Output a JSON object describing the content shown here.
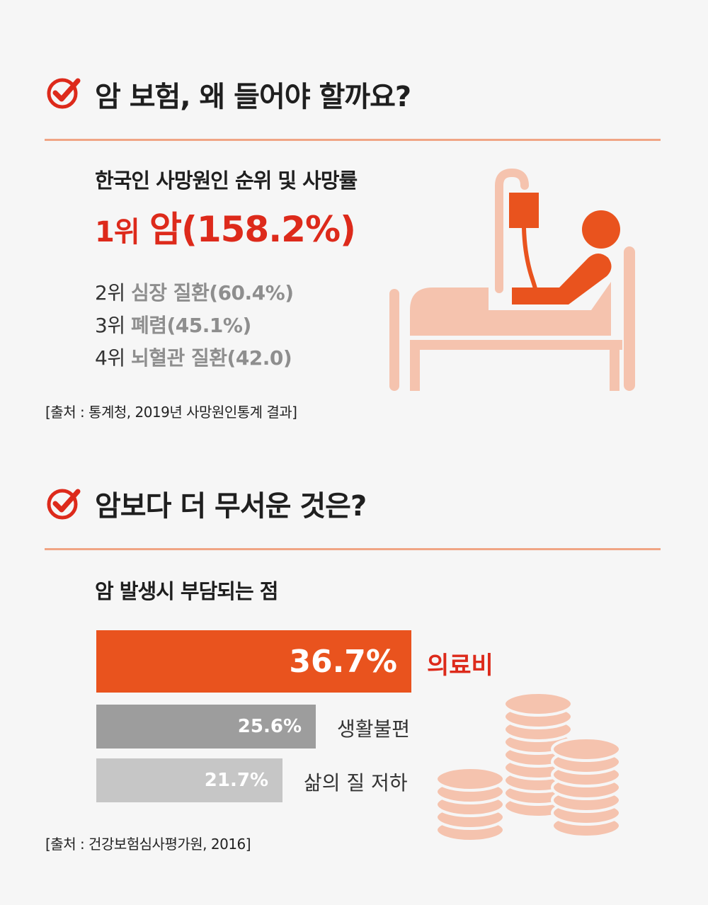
{
  "colors": {
    "accent": "#e9531e",
    "accent_red": "#dd2a1b",
    "light_orange": "#f5c3ae",
    "rule": "#f0a585",
    "bar2": "#9d9d9d",
    "bar3": "#c6c6c6"
  },
  "section1": {
    "icon": "check-circle-icon",
    "title": "암 보험, 왜 들어야 할까요?",
    "subtitle": "한국인 사망원인 순위 및 사망률",
    "first": {
      "rank": "1위",
      "name": "암(158.2%)"
    },
    "ranks": [
      {
        "rank": "2위",
        "name": "심장 질환(60.4%)"
      },
      {
        "rank": "3위",
        "name": "폐렴(45.1%)"
      },
      {
        "rank": "4위",
        "name": "뇌혈관 질환(42.0)"
      }
    ],
    "source": "[출처 : 통계청, 2019년 사망원인통계 결과]",
    "illustration": "hospital-bed-patient-icon"
  },
  "section2": {
    "icon": "check-circle-icon",
    "title": "암보다 더 무서운 것은?",
    "subtitle": "암 발생시 부담되는 점",
    "source": "[출처 : 건강보험심사평가원, 2016]",
    "illustration": "coin-stacks-icon"
  },
  "chart_data": {
    "type": "bar",
    "orientation": "horizontal",
    "title": "암 발생시 부담되는 점",
    "categories": [
      "의료비",
      "생활불편",
      "삶의 질 저하"
    ],
    "values": [
      36.7,
      25.6,
      21.7
    ],
    "value_labels": [
      "36.7%",
      "25.6%",
      "21.7%"
    ],
    "colors": [
      "#e9531e",
      "#9d9d9d",
      "#c6c6c6"
    ],
    "xlim": [
      0,
      36.7
    ],
    "grid": false
  }
}
